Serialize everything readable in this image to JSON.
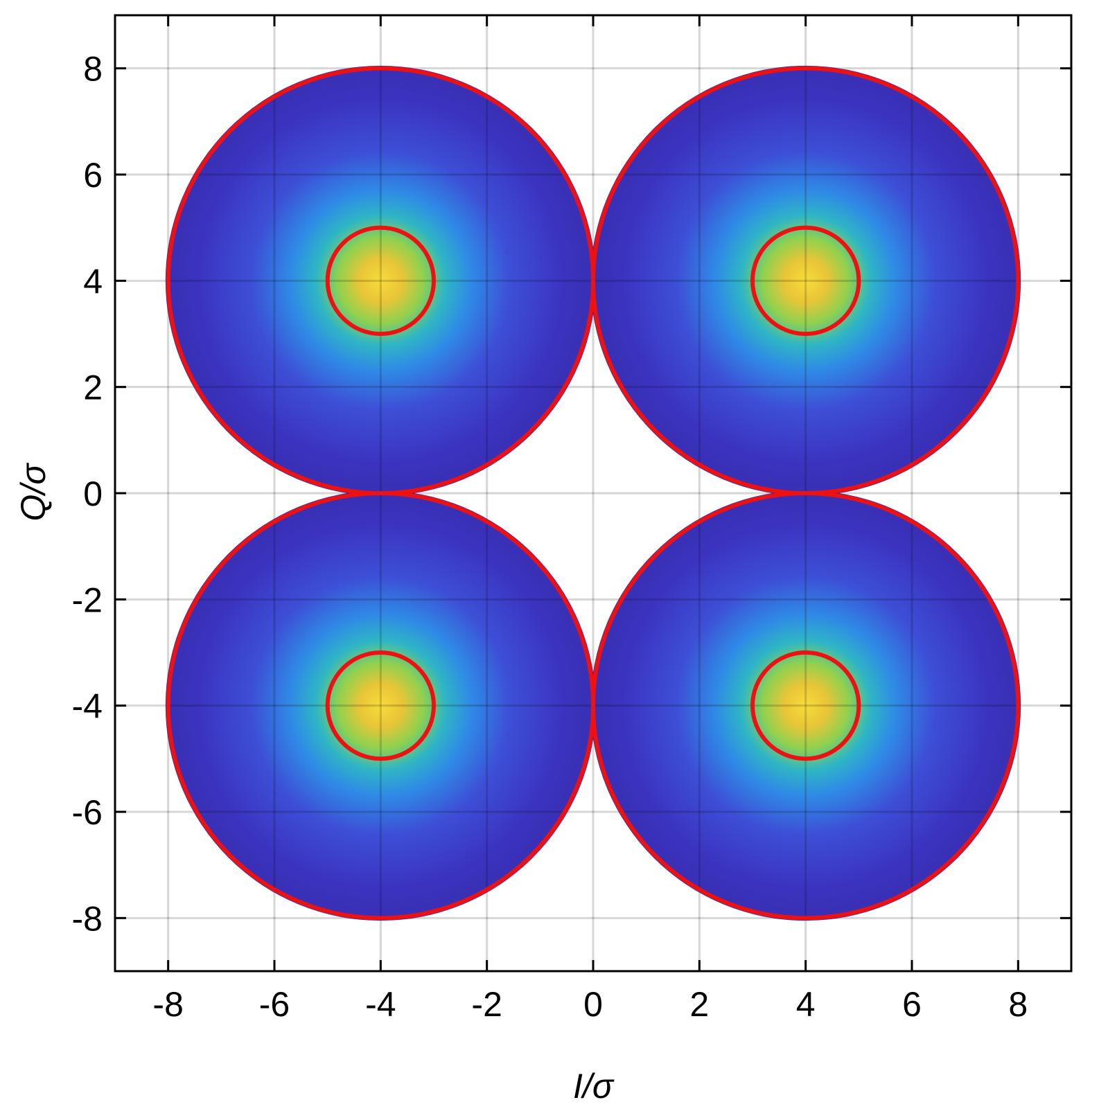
{
  "chart_data": {
    "type": "density",
    "xlabel": "I/σ",
    "ylabel": "Q/σ",
    "xlim": [
      -9,
      9
    ],
    "ylim": [
      -9,
      9
    ],
    "xticks": [
      -8,
      -6,
      -4,
      -2,
      0,
      2,
      4,
      6,
      8
    ],
    "yticks": [
      -8,
      -6,
      -4,
      -2,
      0,
      2,
      4,
      6,
      8
    ],
    "grid": true,
    "colormap": [
      "#f7dc3a",
      "#e9c537",
      "#8fd14f",
      "#2fb6c4",
      "#2f8ae6",
      "#3d4fd6",
      "#3b33c0",
      "#3a2fb4"
    ],
    "clusters": [
      {
        "x": -4,
        "y": 4
      },
      {
        "x": 4,
        "y": 4
      },
      {
        "x": -4,
        "y": -4
      },
      {
        "x": 4,
        "y": -4
      }
    ],
    "circle_color": "#ee1111",
    "circles": [
      {
        "x": -4,
        "y": 4,
        "r": 4
      },
      {
        "x": 4,
        "y": 4,
        "r": 4
      },
      {
        "x": -4,
        "y": -4,
        "r": 4
      },
      {
        "x": 4,
        "y": -4,
        "r": 4
      },
      {
        "x": -4,
        "y": 4,
        "r": 1
      },
      {
        "x": 4,
        "y": 4,
        "r": 1
      },
      {
        "x": -4,
        "y": -4,
        "r": 1
      },
      {
        "x": 4,
        "y": -4,
        "r": 1
      }
    ]
  }
}
